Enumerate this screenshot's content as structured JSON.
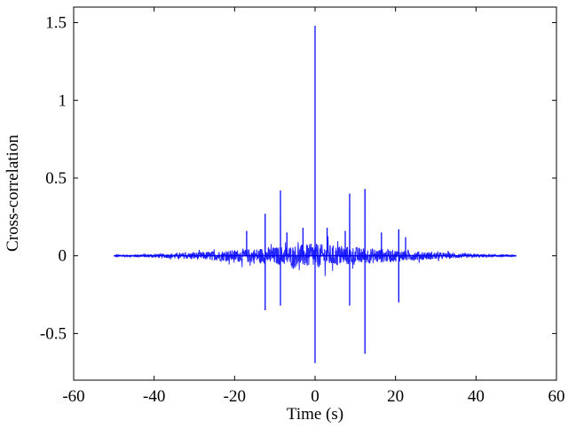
{
  "chart_data": {
    "type": "line",
    "title": "",
    "xlabel": "Time (s)",
    "ylabel": "Cross-correlation",
    "xlim": [
      -60,
      60
    ],
    "ylim": [
      -0.8,
      1.6
    ],
    "x_ticks": [
      -60,
      -40,
      -20,
      0,
      20,
      40,
      60
    ],
    "x_tick_labels": [
      "-60",
      "-40",
      "-20",
      "0",
      "20",
      "40",
      "60"
    ],
    "y_ticks": [
      -0.5,
      0,
      0.5,
      1,
      1.5
    ],
    "y_tick_labels": [
      "-0.5",
      "0",
      "0.5",
      "1",
      "1.5"
    ],
    "grid": false,
    "legend": "none",
    "series_color": "#0000ff",
    "signal_range": [
      -50,
      50
    ],
    "peaks": [
      {
        "x": 0.0,
        "y": 1.48
      },
      {
        "x": 0.0,
        "y": -0.69
      },
      {
        "x": -8.6,
        "y": 0.42
      },
      {
        "x": -8.6,
        "y": -0.32
      },
      {
        "x": -12.4,
        "y": 0.27
      },
      {
        "x": -12.4,
        "y": -0.35
      },
      {
        "x": 8.6,
        "y": 0.4
      },
      {
        "x": 8.6,
        "y": -0.32
      },
      {
        "x": 12.4,
        "y": 0.43
      },
      {
        "x": 12.4,
        "y": -0.63
      },
      {
        "x": -17.0,
        "y": 0.16
      },
      {
        "x": -7.0,
        "y": 0.15
      },
      {
        "x": -3.0,
        "y": 0.18
      },
      {
        "x": 3.0,
        "y": 0.18
      },
      {
        "x": 7.5,
        "y": 0.16
      },
      {
        "x": 16.5,
        "y": 0.15
      },
      {
        "x": 20.8,
        "y": 0.17
      },
      {
        "x": 20.8,
        "y": -0.3
      },
      {
        "x": 22.5,
        "y": 0.12
      }
    ]
  }
}
